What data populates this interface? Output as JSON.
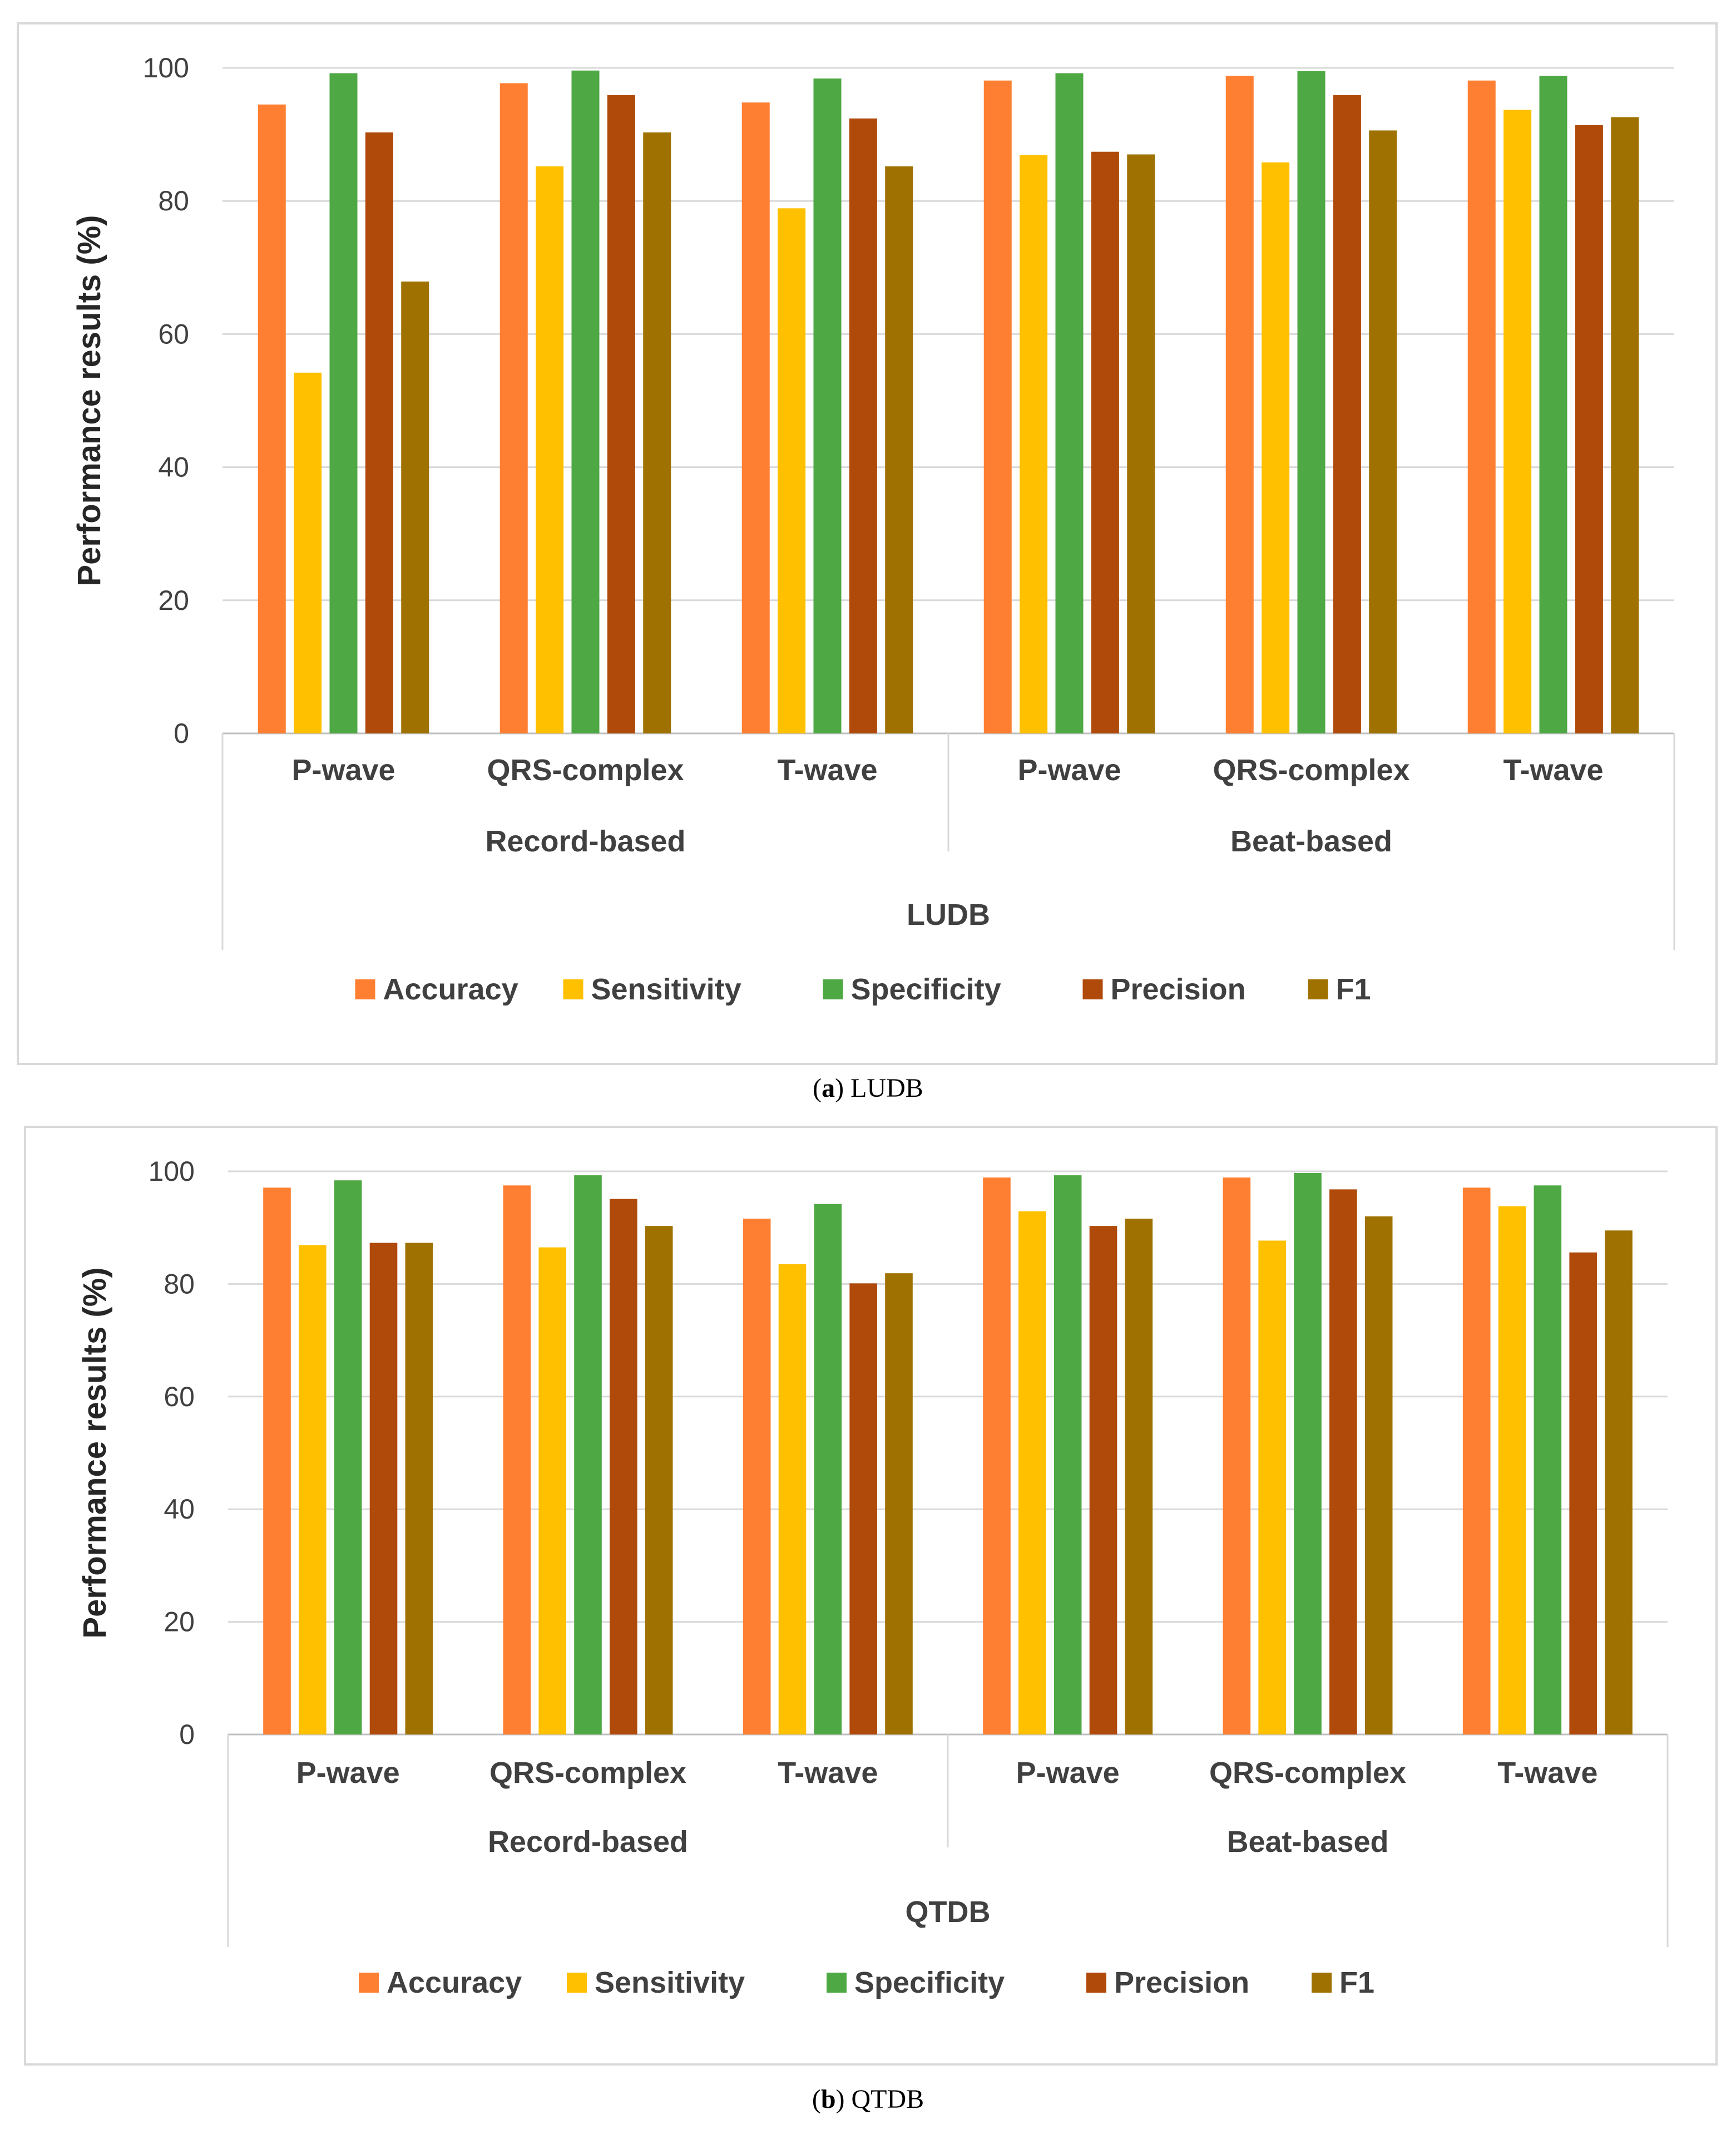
{
  "chart_data": [
    {
      "type": "bar",
      "id": "a",
      "caption_letter": "a",
      "caption_text": "LUDB",
      "dataset_label": "LUDB",
      "title": "",
      "xlabel": "LUDB",
      "ylabel": "Performance results (%)",
      "ylim": [
        0,
        100
      ],
      "yticks": [
        0,
        20,
        40,
        60,
        80,
        100
      ],
      "grid": true,
      "legend": "bottom",
      "groups": [
        {
          "name": "Record-based",
          "categories": [
            "P-wave",
            "QRS-complex",
            "T-wave"
          ]
        },
        {
          "name": "Beat-based",
          "categories": [
            "P-wave",
            "QRS-complex",
            "T-wave"
          ]
        }
      ],
      "series": [
        {
          "name": "Accuracy",
          "color": "#FF7F32",
          "values": [
            94.5,
            97.7,
            94.8,
            98.1,
            98.8,
            98.1
          ]
        },
        {
          "name": "Sensitivity",
          "color": "#FFC000",
          "values": [
            54.2,
            85.2,
            78.9,
            86.9,
            85.8,
            93.7
          ]
        },
        {
          "name": "Specificity",
          "color": "#4EA843",
          "values": [
            99.2,
            99.6,
            98.4,
            99.2,
            99.5,
            98.8
          ]
        },
        {
          "name": "Precision",
          "color": "#B04A0A",
          "values": [
            90.3,
            95.9,
            92.4,
            87.4,
            95.9,
            91.4
          ]
        },
        {
          "name": "F1",
          "color": "#9E7100",
          "values": [
            67.9,
            90.3,
            85.2,
            87.0,
            90.6,
            92.6
          ]
        }
      ]
    },
    {
      "type": "bar",
      "id": "b",
      "caption_letter": "b",
      "caption_text": "QTDB",
      "dataset_label": "QTDB",
      "title": "",
      "xlabel": "QTDB",
      "ylabel": "Performance results (%)",
      "ylim": [
        0,
        100
      ],
      "yticks": [
        0,
        20,
        40,
        60,
        80,
        100
      ],
      "grid": true,
      "legend": "bottom",
      "groups": [
        {
          "name": "Record-based",
          "categories": [
            "P-wave",
            "QRS-complex",
            "T-wave"
          ]
        },
        {
          "name": "Beat-based",
          "categories": [
            "P-wave",
            "QRS-complex",
            "T-wave"
          ]
        }
      ],
      "series": [
        {
          "name": "Accuracy",
          "color": "#FF7F32",
          "values": [
            97.1,
            97.5,
            91.6,
            98.9,
            98.9,
            97.1
          ]
        },
        {
          "name": "Sensitivity",
          "color": "#FFC000",
          "values": [
            86.9,
            86.5,
            83.5,
            92.9,
            87.7,
            93.8
          ]
        },
        {
          "name": "Specificity",
          "color": "#4EA843",
          "values": [
            98.4,
            99.3,
            94.2,
            99.3,
            99.7,
            97.5
          ]
        },
        {
          "name": "Precision",
          "color": "#B04A0A",
          "values": [
            87.3,
            95.1,
            80.1,
            90.3,
            96.8,
            85.6
          ]
        },
        {
          "name": "F1",
          "color": "#9E7100",
          "values": [
            87.3,
            90.3,
            81.9,
            91.6,
            92.0,
            89.5
          ]
        }
      ]
    }
  ]
}
